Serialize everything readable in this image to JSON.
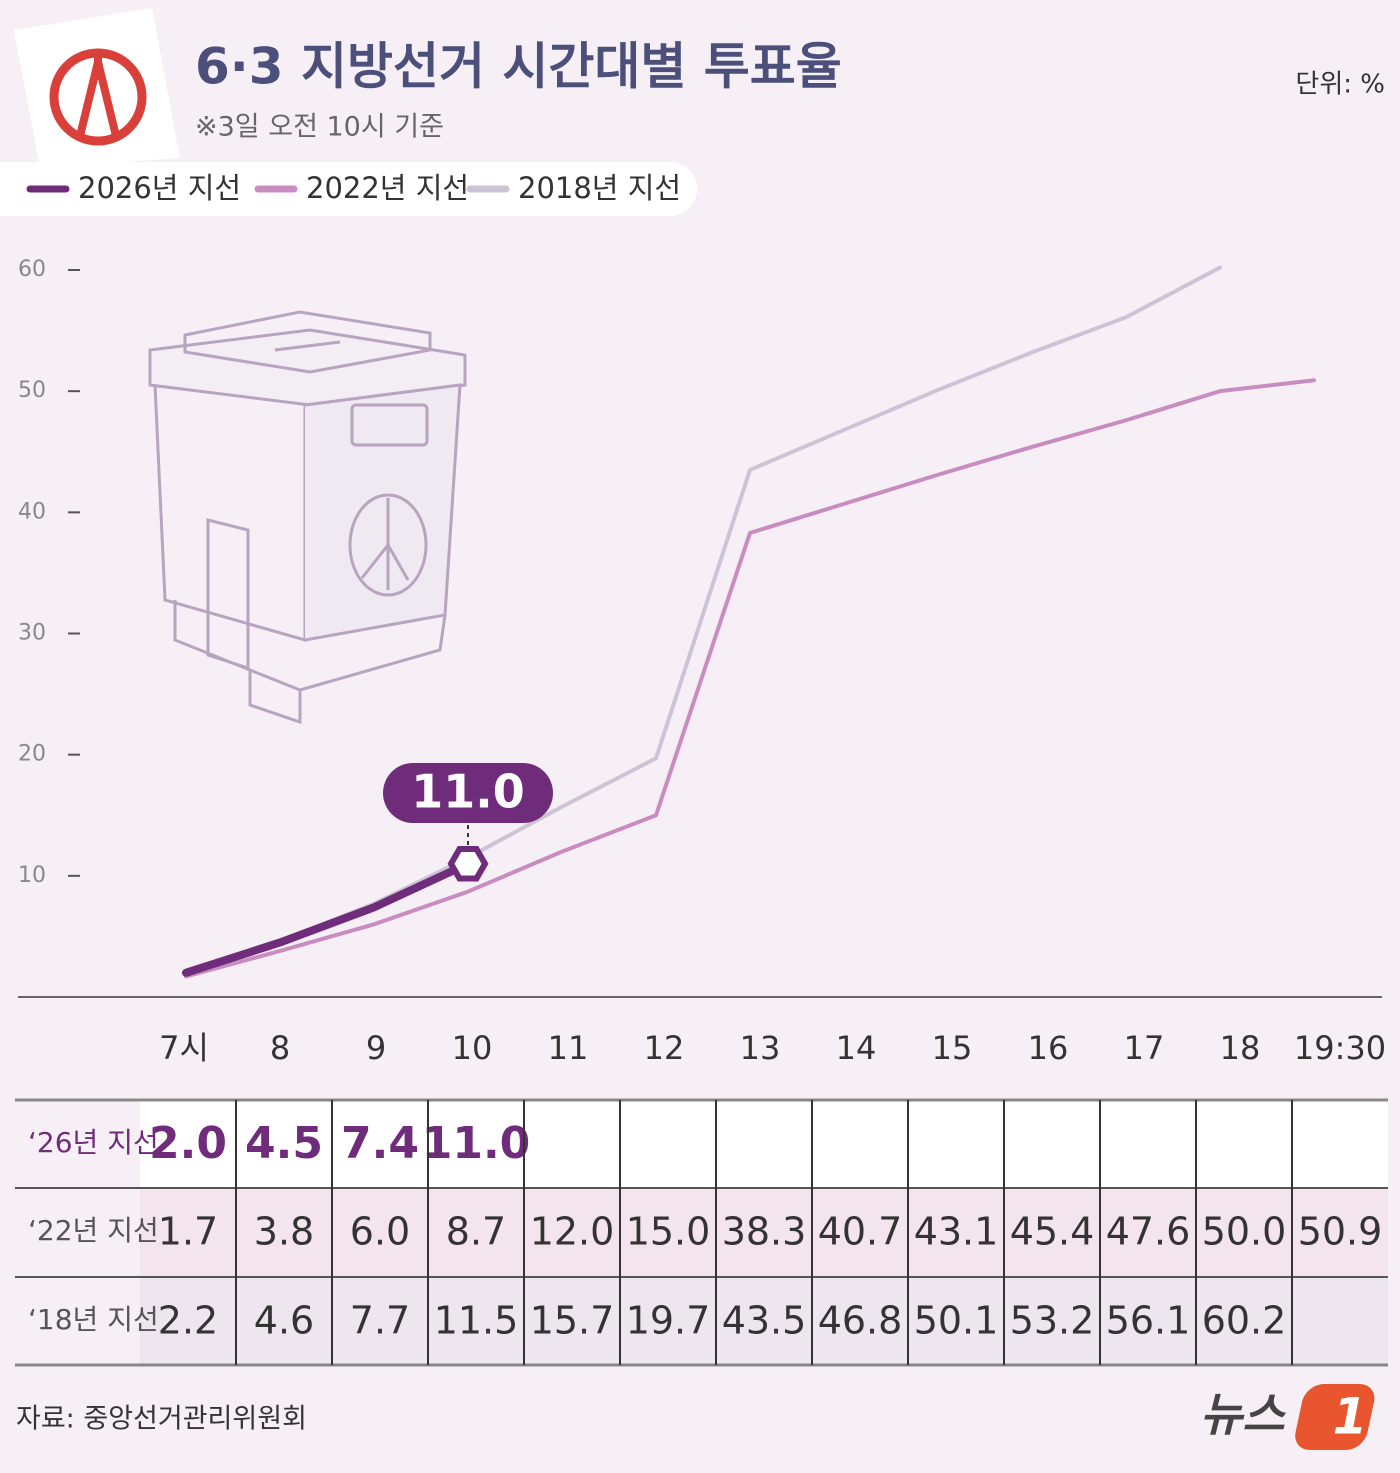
{
  "chart_data": {
    "type": "line",
    "title": "6·3 지방선거 시간대별 투표율",
    "subtitle": "※3일 오전 10시 기준",
    "unit": "단위: %",
    "source": "자료: 중앙선거관리위원회",
    "logo": "뉴스",
    "logo_number": "1",
    "categories": [
      "7시",
      "8",
      "9",
      "10",
      "11",
      "12",
      "13",
      "14",
      "15",
      "16",
      "17",
      "18",
      "19:30"
    ],
    "ylim": [
      0,
      60
    ],
    "yticks": [
      10,
      20,
      30,
      40,
      50,
      60
    ],
    "series": [
      {
        "name": "2026년 지선",
        "table_label": "‘26년 지선",
        "color": "#6f2c7a",
        "values": [
          2.0,
          4.5,
          7.4,
          11.0,
          null,
          null,
          null,
          null,
          null,
          null,
          null,
          null,
          null
        ],
        "value_labels": [
          "2.0",
          "4.5",
          "7.4",
          "11.0",
          null,
          null,
          null,
          null,
          null,
          null,
          null,
          null,
          null
        ]
      },
      {
        "name": "2022년 지선",
        "table_label": "‘22년 지선",
        "color": "#c98cc0",
        "values": [
          1.7,
          3.8,
          6.0,
          8.7,
          12.0,
          15.0,
          38.3,
          40.7,
          43.1,
          45.4,
          47.6,
          50.0,
          50.9
        ],
        "value_labels": [
          "1.7",
          "3.8",
          "6.0",
          "8.7",
          "12.0",
          "15.0",
          "38.3",
          "40.7",
          "43.1",
          "45.4",
          "47.6",
          "50.0",
          "50.9"
        ]
      },
      {
        "name": "2018년 지선",
        "table_label": "‘18년 지선",
        "color": "#cdc3d6",
        "values": [
          2.2,
          4.6,
          7.7,
          11.5,
          15.7,
          19.7,
          43.5,
          46.8,
          50.1,
          53.2,
          56.1,
          60.2,
          null
        ],
        "value_labels": [
          "2.2",
          "4.6",
          "7.7",
          "11.5",
          "15.7",
          "19.7",
          "43.5",
          "46.8",
          "50.1",
          "53.2",
          "56.1",
          "60.2",
          null
        ]
      }
    ],
    "callout_series": 0,
    "callout_index": 3
  }
}
